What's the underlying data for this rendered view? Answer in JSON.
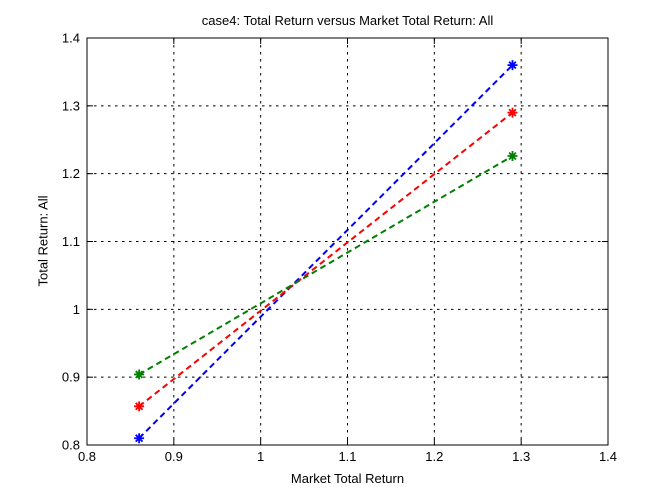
{
  "chart_data": {
    "type": "line",
    "title": "case4: Total Return versus Market Total Return: All",
    "xlabel": "Market Total Return",
    "ylabel": "Total Return: All",
    "xlim": [
      0.8,
      1.4
    ],
    "ylim": [
      0.8,
      1.4
    ],
    "xticks": [
      0.8,
      0.9,
      1,
      1.1,
      1.2,
      1.3,
      1.4
    ],
    "yticks": [
      0.8,
      0.9,
      1,
      1.1,
      1.2,
      1.3,
      1.4
    ],
    "xtick_labels": [
      "0.8",
      "0.9",
      "1",
      "1.1",
      "1.2",
      "1.3",
      "1.4"
    ],
    "ytick_labels": [
      "0.8",
      "0.9",
      "1",
      "1.1",
      "1.2",
      "1.3",
      "1.4"
    ],
    "grid": true,
    "legend_position": "none",
    "line_style": "dashed",
    "marker": "asterisk",
    "axis_color": "#000000",
    "background_color": "#ffffff",
    "series": [
      {
        "name": "series-blue",
        "color": "#0000ff",
        "x": [
          0.86,
          1.29
        ],
        "y": [
          0.81,
          1.36
        ]
      },
      {
        "name": "series-red",
        "color": "#ff0000",
        "x": [
          0.86,
          1.29
        ],
        "y": [
          0.857,
          1.29
        ]
      },
      {
        "name": "series-green",
        "color": "#008000",
        "x": [
          0.86,
          1.29
        ],
        "y": [
          0.904,
          1.226
        ]
      }
    ]
  }
}
